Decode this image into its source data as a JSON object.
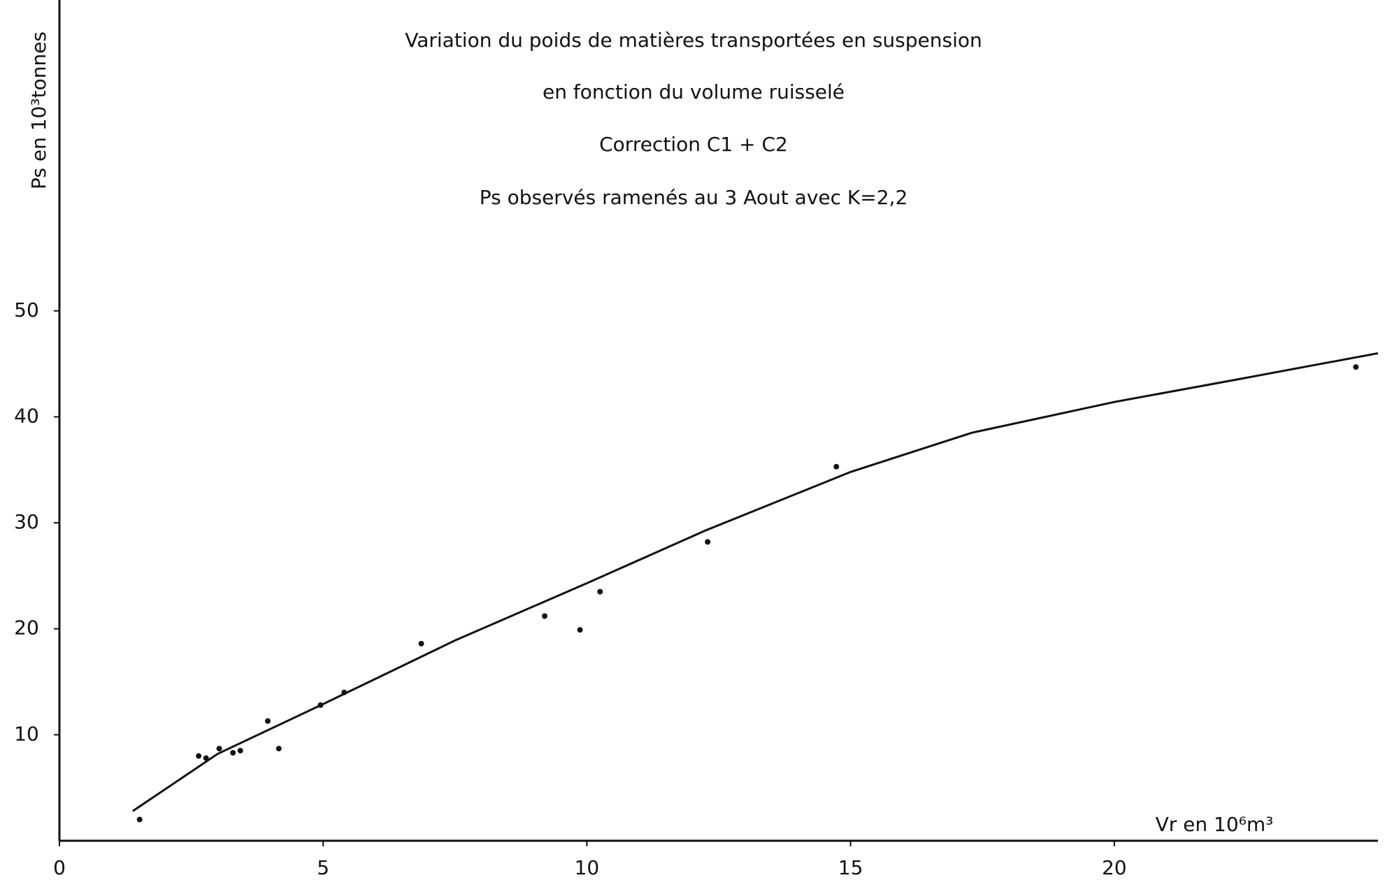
{
  "chart_data": {
    "type": "scatter",
    "title": [
      "Variation du poids de matières transportées en suspension",
      "en fonction du volume ruisselé",
      "Correction C1 + C2",
      "Ps observés ramenés au 3 Aout avec K=2,2"
    ],
    "ylabel": "Ps en 10³tonnes",
    "xlabel": "Vr en 10⁶m³",
    "x": [
      1.52,
      2.64,
      2.78,
      3.03,
      3.29,
      3.43,
      3.95,
      4.16,
      4.95,
      5.4,
      6.86,
      9.2,
      9.87,
      10.25,
      12.29,
      14.73,
      24.58
    ],
    "y": [
      2.0,
      8.0,
      7.8,
      8.7,
      8.3,
      8.5,
      11.3,
      8.7,
      12.8,
      14.0,
      18.6,
      21.2,
      19.9,
      23.5,
      28.2,
      35.3,
      44.7
    ],
    "curve": {
      "x": [
        1.39,
        3,
        5,
        7.5,
        10,
        12.26,
        15,
        17.3,
        20,
        22.3,
        25
      ],
      "y": [
        2.8,
        8.2,
        12.9,
        18.9,
        24.3,
        29.3,
        34.8,
        38.5,
        41.4,
        43.5,
        46.0
      ]
    },
    "color": "#111111",
    "xlim": [
      0,
      25
    ],
    "ylim": [
      0,
      79
    ],
    "xticks": [
      0,
      5,
      10,
      15,
      20
    ],
    "yticks": [
      10,
      20,
      30,
      40,
      50
    ],
    "grid": false
  }
}
